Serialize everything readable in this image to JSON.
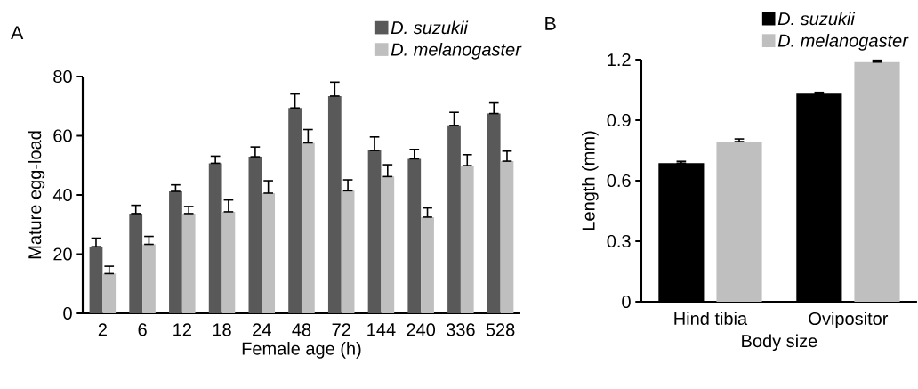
{
  "chart_data": [
    {
      "type": "bar",
      "title": "A",
      "xlabel": "Female age (h)",
      "ylabel": "Mature egg-load",
      "categories": [
        "2",
        "6",
        "12",
        "18",
        "24",
        "48",
        "72",
        "144",
        "240",
        "336",
        "528"
      ],
      "ylim": [
        0,
        80
      ],
      "yticks": [
        0,
        20,
        40,
        60,
        80
      ],
      "legend": "top right",
      "series": [
        {
          "name": "D. suzukii",
          "color": "#595959",
          "values": [
            22.5,
            33.7,
            41.2,
            50.7,
            52.9,
            69.4,
            73.4,
            55.0,
            52.2,
            63.5,
            67.5
          ],
          "errors": [
            [
              22.5,
              25.4
            ],
            [
              33.7,
              36.5
            ],
            [
              41.2,
              43.4
            ],
            [
              50.7,
              53.1
            ],
            [
              52.9,
              56.2
            ],
            [
              69.4,
              74.1
            ],
            [
              73.4,
              78.1
            ],
            [
              55.0,
              59.6
            ],
            [
              52.2,
              55.4
            ],
            [
              63.5,
              67.9
            ],
            [
              67.5,
              71.1
            ]
          ]
        },
        {
          "name": "D. melanogaster",
          "color": "#bfbfbf",
          "values": [
            13.4,
            23.3,
            33.7,
            34.3,
            40.6,
            57.6,
            41.4,
            46.2,
            32.5,
            49.9,
            51.4
          ],
          "errors": [
            [
              13.4,
              15.9
            ],
            [
              23.3,
              26.0
            ],
            [
              33.7,
              36.1
            ],
            [
              34.3,
              38.3
            ],
            [
              40.6,
              44.8
            ],
            [
              57.6,
              62.1
            ],
            [
              41.4,
              45.1
            ],
            [
              46.2,
              50.2
            ],
            [
              32.5,
              35.6
            ],
            [
              49.9,
              53.6
            ],
            [
              51.4,
              54.8
            ]
          ]
        }
      ]
    },
    {
      "type": "bar",
      "title": "B",
      "xlabel": "Body size",
      "ylabel": "Length (mm)",
      "categories": [
        "Hind tibia",
        "Ovipositor"
      ],
      "ylim": [
        0,
        1.2
      ],
      "yticks": [
        0,
        0.3,
        0.6,
        0.9,
        1.2
      ],
      "legend": "top right",
      "series": [
        {
          "name": "D. suzukii",
          "color": "#000000",
          "values": [
            0.687,
            1.031
          ],
          "errors": [
            [
              0.687,
              0.696
            ],
            [
              1.031,
              1.038
            ]
          ]
        },
        {
          "name": "D. melanogaster",
          "color": "#bfbfbf",
          "values": [
            0.794,
            1.188
          ],
          "errors": [
            [
              0.794,
              0.807
            ],
            [
              1.188,
              1.197
            ]
          ]
        }
      ]
    }
  ]
}
